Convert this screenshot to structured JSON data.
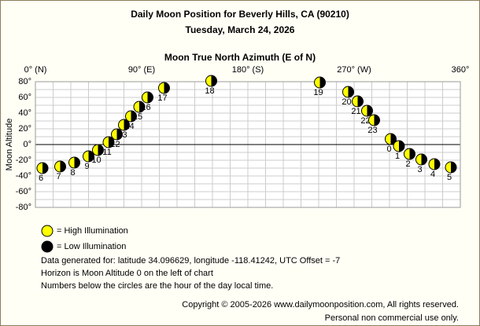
{
  "chart_data": {
    "type": "scatter",
    "title": "Daily Moon Position for Beverly Hills, CA (90210)",
    "subtitle": "Tuesday, March 24, 2026",
    "x_label": "Moon True North Azimuth (E of N)",
    "y_label": "Moon Altitude",
    "xlim": [
      0,
      360
    ],
    "ylim": [
      -80,
      80
    ],
    "xticks": [
      {
        "value": 0,
        "label": "0° (N)"
      },
      {
        "value": 90,
        "label": "90° (E)"
      },
      {
        "value": 180,
        "label": "180° (S)"
      },
      {
        "value": 270,
        "label": "270° (W)"
      },
      {
        "value": 360,
        "label": "360°"
      }
    ],
    "yticks": [
      {
        "value": 80,
        "label": "80°"
      },
      {
        "value": 60,
        "label": "60°"
      },
      {
        "value": 40,
        "label": "40°"
      },
      {
        "value": 20,
        "label": "20°"
      },
      {
        "value": 0,
        "label": "0°"
      },
      {
        "value": -20,
        "label": "-20°"
      },
      {
        "value": -40,
        "label": "-40°"
      },
      {
        "value": -60,
        "label": "-60°"
      },
      {
        "value": -80,
        "label": "-80°"
      }
    ],
    "grid": true,
    "point_labels": [
      "6",
      "7",
      "8",
      "9",
      "10",
      "11",
      "12",
      "13",
      "14",
      "15",
      "16",
      "17",
      "18",
      "19",
      "20",
      "21",
      "22",
      "23",
      "0",
      "1",
      "2",
      "3",
      "4",
      "5"
    ],
    "x": [
      6,
      21,
      33,
      45,
      53,
      62,
      69,
      75,
      81,
      88,
      95,
      109,
      149,
      241,
      265,
      273,
      281,
      287,
      301,
      308,
      317,
      327,
      338,
      352
    ],
    "values": [
      -30,
      -28,
      -23,
      -15,
      -7,
      3,
      13,
      25,
      36,
      48,
      60,
      72,
      81,
      79,
      67,
      55,
      43,
      31,
      7,
      -2,
      -12,
      -19,
      -25,
      -29
    ],
    "legend": [
      {
        "name": "= High Illumination",
        "color": "#ffff00"
      },
      {
        "name": "= Low Illumination",
        "color": "#000000"
      }
    ],
    "notes": [
      "Data generated for: latitude 34.096629, longitude -118.41242, UTC Offset = -7",
      "Horizon is Moon Altitude 0 on the left of chart",
      "Numbers below the circles are the hour of the day local time."
    ],
    "copyright": [
      "Copyright © 2005-2026 www.dailymoonposition.com, All rights reserved.",
      "Personal non commercial use only."
    ]
  }
}
